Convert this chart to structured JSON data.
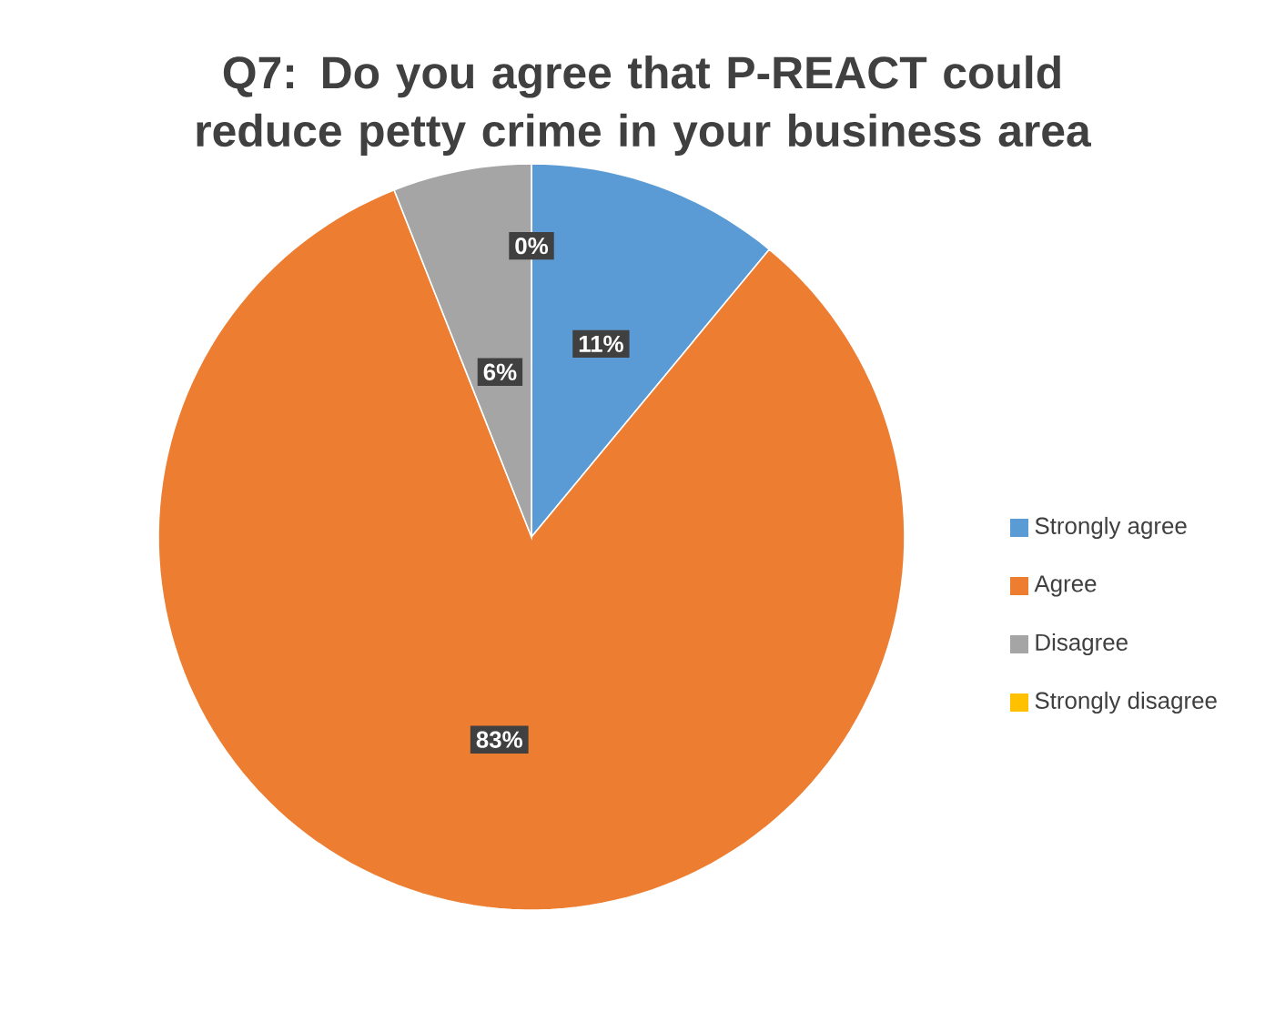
{
  "chart_data": {
    "type": "pie",
    "title": "Q7: Do you agree that P-REACT could reduce petty crime in your business area",
    "categories": [
      "Strongly agree",
      "Agree",
      "Disagree",
      "Strongly disagree"
    ],
    "values": [
      11,
      83,
      6,
      0
    ],
    "colors": [
      "#5b9bd5",
      "#ed7d31",
      "#a5a5a5",
      "#ffc000"
    ],
    "value_labels": [
      "11%",
      "83%",
      "6%",
      "0%"
    ],
    "legend": "right"
  }
}
